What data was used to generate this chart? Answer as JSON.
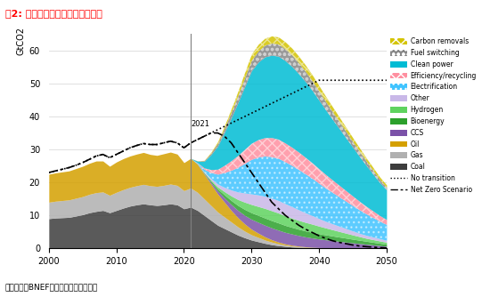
{
  "title": "图2: 零碳路径模型能源排放结构图",
  "ylabel": "GtCO2",
  "source": "资料来源：BNEF，源达信息证券研究所",
  "years": [
    2000,
    2001,
    2002,
    2003,
    2004,
    2005,
    2006,
    2007,
    2008,
    2009,
    2010,
    2011,
    2012,
    2013,
    2014,
    2015,
    2016,
    2017,
    2018,
    2019,
    2020,
    2021,
    2022,
    2023,
    2024,
    2025,
    2026,
    2027,
    2028,
    2029,
    2030,
    2031,
    2032,
    2033,
    2034,
    2035,
    2036,
    2037,
    2038,
    2039,
    2040,
    2041,
    2042,
    2043,
    2044,
    2045,
    2046,
    2047,
    2048,
    2049,
    2050
  ],
  "coal": [
    9,
    9.2,
    9.3,
    9.4,
    9.8,
    10.2,
    10.8,
    11.2,
    11.5,
    10.8,
    11.5,
    12.2,
    12.8,
    13.2,
    13.5,
    13.2,
    13.0,
    13.2,
    13.5,
    13.2,
    12.0,
    12.5,
    11.5,
    10.0,
    8.5,
    7.0,
    6.0,
    5.0,
    4.0,
    3.2,
    2.5,
    2.0,
    1.5,
    1.1,
    0.8,
    0.6,
    0.4,
    0.3,
    0.2,
    0.15,
    0.1,
    0.08,
    0.06,
    0.05,
    0.04,
    0.03,
    0.02,
    0.02,
    0.01,
    0.01,
    0.01
  ],
  "gas": [
    5,
    5.1,
    5.2,
    5.3,
    5.4,
    5.5,
    5.6,
    5.7,
    5.6,
    5.3,
    5.5,
    5.6,
    5.7,
    5.8,
    5.9,
    5.8,
    5.8,
    5.9,
    6.0,
    5.9,
    5.5,
    5.8,
    5.5,
    5.0,
    4.5,
    4.0,
    3.5,
    3.0,
    2.5,
    2.0,
    1.6,
    1.3,
    1.0,
    0.8,
    0.6,
    0.4,
    0.3,
    0.2,
    0.15,
    0.1,
    0.08,
    0.06,
    0.05,
    0.04,
    0.03,
    0.02,
    0.02,
    0.01,
    0.01,
    0.01,
    0.01
  ],
  "oil": [
    8.5,
    8.6,
    8.7,
    8.8,
    9.0,
    9.2,
    9.4,
    9.6,
    9.4,
    8.8,
    9.2,
    9.4,
    9.5,
    9.6,
    9.7,
    9.5,
    9.4,
    9.6,
    9.7,
    9.5,
    8.5,
    9.0,
    8.5,
    7.5,
    6.5,
    5.5,
    4.5,
    3.5,
    2.8,
    2.2,
    1.7,
    1.3,
    1.0,
    0.7,
    0.5,
    0.35,
    0.25,
    0.18,
    0.12,
    0.08,
    0.05,
    0.04,
    0.03,
    0.02,
    0.02,
    0.01,
    0.01,
    0.01,
    0.01,
    0.01,
    0.01
  ],
  "ccs": [
    0,
    0,
    0,
    0,
    0,
    0,
    0,
    0,
    0,
    0,
    0,
    0,
    0,
    0,
    0,
    0,
    0,
    0,
    0,
    0,
    0,
    0,
    0.05,
    0.2,
    0.5,
    0.9,
    1.3,
    1.8,
    2.2,
    2.6,
    3.0,
    3.3,
    3.5,
    3.6,
    3.6,
    3.5,
    3.4,
    3.2,
    3.0,
    2.8,
    2.6,
    2.4,
    2.2,
    2.0,
    1.8,
    1.6,
    1.4,
    1.2,
    1.0,
    0.8,
    0.6
  ],
  "bioenergy": [
    0,
    0,
    0,
    0,
    0,
    0,
    0,
    0,
    0,
    0,
    0,
    0,
    0,
    0,
    0,
    0,
    0,
    0,
    0,
    0,
    0,
    0,
    0.05,
    0.2,
    0.4,
    0.6,
    0.9,
    1.2,
    1.5,
    1.8,
    2.0,
    2.1,
    2.2,
    2.2,
    2.2,
    2.1,
    2.0,
    1.9,
    1.8,
    1.7,
    1.6,
    1.5,
    1.4,
    1.3,
    1.2,
    1.1,
    1.0,
    0.9,
    0.8,
    0.7,
    0.6
  ],
  "hydrogen": [
    0,
    0,
    0,
    0,
    0,
    0,
    0,
    0,
    0,
    0,
    0,
    0,
    0,
    0,
    0,
    0,
    0,
    0,
    0,
    0,
    0,
    0,
    0.02,
    0.1,
    0.3,
    0.6,
    1.0,
    1.4,
    1.8,
    2.2,
    2.5,
    2.7,
    2.9,
    3.0,
    3.0,
    2.9,
    2.8,
    2.7,
    2.6,
    2.5,
    2.3,
    2.1,
    1.9,
    1.7,
    1.5,
    1.3,
    1.1,
    0.9,
    0.8,
    0.7,
    0.6
  ],
  "other": [
    0,
    0,
    0,
    0,
    0,
    0,
    0,
    0,
    0,
    0,
    0,
    0,
    0,
    0,
    0,
    0,
    0,
    0,
    0,
    0,
    0,
    0,
    0.05,
    0.2,
    0.5,
    0.9,
    1.3,
    1.8,
    2.3,
    2.8,
    3.2,
    3.5,
    3.7,
    3.8,
    3.8,
    3.7,
    3.5,
    3.2,
    2.9,
    2.6,
    2.3,
    2.0,
    1.8,
    1.6,
    1.4,
    1.2,
    1.0,
    0.9,
    0.8,
    0.7,
    0.6
  ],
  "electrification": [
    0,
    0,
    0,
    0,
    0,
    0,
    0,
    0,
    0,
    0,
    0,
    0,
    0,
    0,
    0,
    0,
    0,
    0,
    0,
    0,
    0,
    0,
    0.2,
    0.8,
    1.8,
    3.0,
    4.5,
    6.0,
    7.5,
    9.0,
    10.5,
    11.5,
    12.2,
    12.6,
    12.8,
    12.7,
    12.5,
    12.2,
    11.8,
    11.3,
    10.7,
    10.1,
    9.5,
    8.9,
    8.3,
    7.7,
    7.1,
    6.5,
    5.9,
    5.3,
    4.8
  ],
  "efficiency_recycling": [
    0,
    0,
    0,
    0,
    0,
    0,
    0,
    0,
    0,
    0,
    0,
    0,
    0,
    0,
    0,
    0,
    0,
    0,
    0,
    0,
    0,
    0,
    0.1,
    0.4,
    0.9,
    1.5,
    2.2,
    2.9,
    3.6,
    4.3,
    4.9,
    5.3,
    5.6,
    5.8,
    5.8,
    5.7,
    5.5,
    5.3,
    5.0,
    4.7,
    4.4,
    4.1,
    3.8,
    3.5,
    3.2,
    2.9,
    2.6,
    2.3,
    2.0,
    1.7,
    1.5
  ],
  "clean_power": [
    0,
    0,
    0,
    0,
    0,
    0,
    0,
    0,
    0,
    0,
    0,
    0,
    0,
    0,
    0,
    0,
    0,
    0,
    0,
    0,
    0,
    0,
    0.5,
    2.0,
    4.5,
    7.0,
    10.0,
    13.0,
    16.0,
    19.0,
    22.0,
    23.5,
    24.5,
    25.0,
    25.2,
    25.0,
    24.5,
    23.8,
    23.0,
    22.0,
    20.8,
    19.6,
    18.4,
    17.2,
    16.0,
    14.8,
    13.6,
    12.4,
    11.2,
    10.0,
    9.0
  ],
  "fuel_switching": [
    0,
    0,
    0,
    0,
    0,
    0,
    0,
    0,
    0,
    0,
    0,
    0,
    0,
    0,
    0,
    0,
    0,
    0,
    0,
    0,
    0,
    0,
    0.05,
    0.2,
    0.5,
    0.9,
    1.3,
    1.7,
    2.2,
    2.7,
    3.2,
    3.4,
    3.6,
    3.7,
    3.7,
    3.6,
    3.5,
    3.3,
    3.1,
    2.9,
    2.7,
    2.5,
    2.3,
    2.1,
    1.9,
    1.7,
    1.5,
    1.3,
    1.1,
    0.9,
    0.8
  ],
  "carbon_removals": [
    0,
    0,
    0,
    0,
    0,
    0,
    0,
    0,
    0,
    0,
    0,
    0,
    0,
    0,
    0,
    0,
    0,
    0,
    0,
    0,
    0,
    0,
    0.02,
    0.1,
    0.25,
    0.45,
    0.7,
    1.0,
    1.3,
    1.6,
    1.9,
    2.0,
    2.1,
    2.15,
    2.15,
    2.1,
    2.05,
    2.0,
    1.9,
    1.8,
    1.7,
    1.6,
    1.5,
    1.4,
    1.3,
    1.2,
    1.1,
    1.0,
    0.9,
    0.8,
    0.7
  ],
  "no_transition": [
    23,
    23.5,
    24,
    24.5,
    25.2,
    26,
    27,
    28,
    28.5,
    27.5,
    28.5,
    29.5,
    30.5,
    31.2,
    31.8,
    31.5,
    31.5,
    32,
    32.5,
    32.0,
    30.5,
    32,
    33,
    34,
    35,
    36,
    37,
    38,
    39,
    40,
    41,
    42,
    43,
    44,
    45,
    46,
    47,
    48,
    49,
    50,
    51,
    51,
    51,
    51,
    51,
    51,
    51,
    51,
    51,
    51,
    51
  ],
  "net_zero": [
    23,
    23.5,
    24,
    24.5,
    25.2,
    26,
    27,
    28,
    28.5,
    27.5,
    28.5,
    29.5,
    30.5,
    31.2,
    31.8,
    31.5,
    31.5,
    32,
    32.5,
    32.0,
    30.5,
    32,
    33,
    34,
    35,
    35,
    34,
    32,
    29,
    26,
    23,
    20,
    17,
    14,
    12,
    10,
    8.5,
    7,
    5.8,
    4.8,
    3.8,
    3.0,
    2.3,
    1.8,
    1.4,
    1.0,
    0.7,
    0.5,
    0.35,
    0.2,
    0.1
  ],
  "colors": {
    "coal": "#3d3d3d",
    "gas": "#b0b0b0",
    "oil": "#d4a000",
    "ccs": "#7b52a8",
    "bioenergy": "#2ca02c",
    "hydrogen": "#5fd35f",
    "other": "#c9b8e8",
    "electrification": "#40c4ff",
    "efficiency_recycling": "#ff8fa0",
    "clean_power": "#00bcd4",
    "fuel_switching": "#888888",
    "carbon_removals": "#d4c400"
  }
}
